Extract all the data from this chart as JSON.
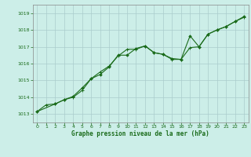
{
  "title": "Graphe pression niveau de la mer (hPa)",
  "bg_color": "#cceee8",
  "grid_color": "#aacccc",
  "line_color": "#1a6b1a",
  "marker_color": "#1a6b1a",
  "xlim": [
    -0.5,
    23.5
  ],
  "ylim": [
    1012.5,
    1019.5
  ],
  "yticks": [
    1013,
    1014,
    1015,
    1016,
    1017,
    1018,
    1019
  ],
  "xticks": [
    0,
    1,
    2,
    3,
    4,
    5,
    6,
    7,
    8,
    9,
    10,
    11,
    12,
    13,
    14,
    15,
    16,
    17,
    18,
    19,
    20,
    21,
    22,
    23
  ],
  "series1_x": [
    0,
    1,
    2,
    3,
    4,
    5,
    6,
    7,
    8,
    9,
    10,
    11,
    12,
    13,
    14,
    15,
    16,
    17,
    18,
    19,
    20,
    21,
    22,
    23
  ],
  "series1_y": [
    1013.15,
    1013.55,
    1013.6,
    1013.85,
    1014.0,
    1014.4,
    1015.1,
    1015.5,
    1015.85,
    1016.45,
    1016.85,
    1016.85,
    1017.05,
    1016.65,
    1016.55,
    1016.25,
    1016.25,
    1016.95,
    1017.0,
    1017.75,
    1018.0,
    1018.2,
    1018.5,
    1018.75
  ],
  "series2_x": [
    0,
    2,
    3,
    4,
    5,
    6,
    7,
    8,
    9,
    10,
    11,
    12,
    13,
    14,
    15,
    16,
    17,
    18,
    19,
    20,
    21,
    22,
    23
  ],
  "series2_y": [
    1013.15,
    1013.6,
    1013.85,
    1014.05,
    1014.55,
    1015.1,
    1015.35,
    1015.8,
    1016.5,
    1016.5,
    1016.9,
    1017.05,
    1016.65,
    1016.55,
    1016.3,
    1016.25,
    1017.65,
    1017.0,
    1017.75,
    1018.0,
    1018.2,
    1018.5,
    1018.8
  ]
}
